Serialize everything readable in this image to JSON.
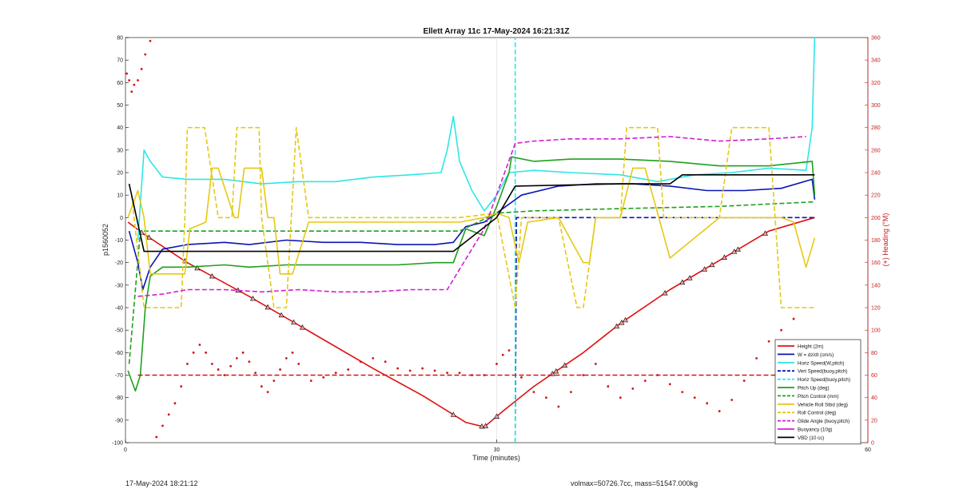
{
  "footer": {
    "left": "17-May-2024 18:21:12",
    "right": "volmax=50726.7cc, mass=51547.000kg"
  },
  "chart_data": {
    "type": "line",
    "title": "Ellett Array 11c 17-May-2024 16:21:31Z",
    "xlabel": "Time (minutes)",
    "ylabel": "p1560052",
    "y2label": "(+) Heading (°M)",
    "xlim": [
      0,
      60
    ],
    "ylim": [
      -100,
      80
    ],
    "y2lim": [
      0,
      360
    ],
    "xticks": [
      0,
      30,
      60
    ],
    "yticks": [
      -100,
      -90,
      -80,
      -70,
      -60,
      -50,
      -40,
      -30,
      -20,
      -10,
      0,
      10,
      20,
      30,
      40,
      50,
      60,
      70,
      80
    ],
    "y2ticks": [
      0,
      20,
      40,
      60,
      80,
      100,
      120,
      140,
      160,
      180,
      200,
      220,
      240,
      260,
      280,
      300,
      320,
      340,
      360
    ],
    "grid": "x-only",
    "legend_position": "bottom-right",
    "colors": {
      "height": "#e01010",
      "w": "#0a14b4",
      "horiz": "#2ee6e6",
      "pitch": "#1ea01e",
      "roll": "#e6c814",
      "glide": "#d21ed2",
      "vbd": "#000000",
      "heading": "#d21414",
      "right_axis": "#c81e1e"
    },
    "series": [
      {
        "name": "Height (2m)",
        "style": "solid",
        "color": "#e01010",
        "marker": "triangle",
        "x": [
          0.2,
          1.4,
          5,
          10,
          15,
          20,
          24,
          27.5,
          29,
          30.5,
          33,
          37,
          40,
          44,
          48,
          52,
          55.7
        ],
        "y": [
          -2,
          -7,
          -20,
          -35,
          -51,
          -67,
          -79,
          -91,
          -93,
          -86,
          -75,
          -60,
          -47,
          -32,
          -19,
          -6,
          0
        ],
        "marker_x": [
          1.3,
          1.9,
          4.8,
          5.8,
          7,
          9.1,
          10.3,
          11.5,
          12.6,
          13.6,
          14.3,
          26.5,
          28.8,
          29.1,
          30,
          34.5,
          34.8,
          35.5,
          39.7,
          40.1,
          40.4,
          43.6,
          45,
          45.6,
          46.8,
          47.4,
          48.4,
          49.2,
          49.5,
          51.7
        ]
      },
      {
        "name": "W = dz/dt (cm/s)",
        "style": "solid",
        "color": "#0a14b4",
        "x": [
          0.3,
          1,
          1.4,
          2,
          3,
          5,
          8,
          10,
          13,
          16,
          19,
          22,
          25,
          26.5,
          27.5,
          29,
          30,
          32,
          35,
          38,
          41,
          44,
          47,
          50,
          53,
          55.5,
          55.7
        ],
        "y": [
          -6,
          -20,
          -32,
          -22,
          -14,
          -12,
          -11,
          -12,
          -10,
          -11,
          -11,
          -12,
          -12,
          -11,
          -4,
          -2,
          2,
          10,
          14,
          15,
          15,
          14,
          12,
          12,
          13,
          17,
          8
        ]
      },
      {
        "name": "Horiz Speed(W,pitch)",
        "style": "solid",
        "color": "#2ee6e6",
        "x": [
          1,
          1.5,
          2,
          3,
          5,
          8,
          11,
          14,
          17,
          20,
          23,
          25.5,
          26,
          26.5,
          27,
          28,
          29,
          30,
          31,
          33,
          36,
          40,
          43,
          46,
          49,
          52,
          55,
          55.5,
          55.7
        ],
        "y": [
          -10,
          30,
          25,
          18,
          17,
          17,
          15,
          16,
          16,
          18,
          19,
          20,
          30,
          45,
          25,
          12,
          3,
          10,
          20,
          21,
          20,
          19,
          16,
          19,
          20,
          22,
          21,
          40,
          80
        ]
      },
      {
        "name": "Vert Speed(buoy,pitch)",
        "style": "dashed",
        "color": "#0a14b4",
        "x": [
          31.5,
          31.6,
          55.7
        ],
        "y": [
          -100,
          0,
          0
        ]
      },
      {
        "name": "Horiz Speed(buoy,pitch)",
        "style": "dashed",
        "color": "#2ee6e6",
        "x": [
          31.5,
          31.5
        ],
        "y": [
          -100,
          80
        ]
      },
      {
        "name": "Pitch Up (deg)",
        "style": "solid",
        "color": "#1ea01e",
        "x": [
          0.2,
          0.8,
          1.2,
          1.6,
          2,
          3,
          5,
          8,
          10,
          13,
          16,
          19,
          22,
          25,
          26.5,
          27.5,
          29,
          30,
          31,
          31.2,
          33,
          36,
          40,
          44,
          48,
          52,
          55.5,
          55.7
        ],
        "y": [
          -68,
          -77,
          -70,
          -40,
          -26,
          -22,
          -22,
          -21,
          -22,
          -21,
          -21,
          -21,
          -21,
          -20,
          -20,
          -5,
          -8,
          5,
          20,
          27,
          25,
          26,
          26,
          25,
          23,
          23,
          25,
          10
        ]
      },
      {
        "name": "Pitch Control (mm)",
        "style": "dashed",
        "color": "#1ea01e",
        "x": [
          0.3,
          1.2,
          27,
          30,
          33,
          40,
          48,
          55.7
        ],
        "y": [
          -65,
          -6,
          -6,
          2,
          3,
          4,
          5,
          7
        ]
      },
      {
        "name": "Vehicle Roll Stbd (deg)",
        "style": "solid",
        "color": "#e6c814",
        "x": [
          0.2,
          1,
          1.5,
          2,
          4,
          4.8,
          5.2,
          6.5,
          7,
          7.5,
          8.8,
          9.1,
          9.6,
          11,
          11.5,
          12,
          12.5,
          13.5,
          14.8,
          27,
          29,
          30,
          31,
          31.8,
          32.5,
          35,
          37,
          37.5,
          38,
          40,
          41,
          42,
          44,
          48,
          49,
          52,
          53,
          54,
          55,
          55.7
        ],
        "y": [
          0,
          12,
          0,
          -25,
          -25,
          -25,
          -5,
          -2,
          22,
          22,
          0,
          0,
          22,
          22,
          0,
          0,
          -25,
          -25,
          -2,
          -2,
          0,
          2,
          0,
          -20,
          -2,
          0,
          -20,
          -20,
          0,
          0,
          22,
          22,
          -18,
          0,
          0,
          0,
          0,
          -2,
          -22,
          -9
        ]
      },
      {
        "name": "Roll Control (deg)",
        "style": "dashed",
        "color": "#e6c814",
        "x": [
          0.5,
          1.5,
          4.5,
          4.8,
          5,
          6.4,
          7.5,
          8.6,
          9,
          10.8,
          11,
          12,
          13,
          13.8,
          14.8,
          27,
          30,
          31.5,
          32,
          33,
          35,
          36.5,
          37,
          38,
          40,
          40.5,
          43,
          43.5,
          48,
          49,
          52,
          53,
          54.5,
          55.7
        ],
        "y": [
          10,
          -40,
          -40,
          0,
          40,
          40,
          0,
          0,
          40,
          40,
          0,
          -40,
          -40,
          40,
          0,
          0,
          2,
          -40,
          0,
          0,
          0,
          -40,
          -40,
          0,
          0,
          40,
          40,
          0,
          0,
          40,
          40,
          -40,
          -40,
          -40
        ]
      },
      {
        "name": "Glide Angle (buoy,pitch)",
        "style": "dashed",
        "color": "#d21ed2",
        "x": [
          1,
          3,
          5,
          8,
          11,
          14,
          17,
          20,
          23,
          26,
          27,
          29,
          31.5,
          33,
          36,
          40,
          44,
          48,
          52,
          55
        ],
        "y": [
          -35,
          -34,
          -32,
          -32,
          -33,
          -32,
          -33,
          -33,
          -32,
          -32,
          -23,
          -5,
          33,
          34,
          35,
          35,
          36,
          34,
          35,
          36
        ]
      },
      {
        "name": "Buoyancy (10g)",
        "style": "solid",
        "color": "#d21ed2",
        "x": [],
        "y": []
      },
      {
        "name": "VBD (10 cc)",
        "style": "solid",
        "color": "#000000",
        "x": [
          0.3,
          1.5,
          26.5,
          30,
          31.5,
          40,
          44,
          45,
          55.7
        ],
        "y": [
          15,
          -15,
          -15,
          0,
          14,
          15,
          15,
          19,
          19
        ]
      },
      {
        "name": "Heading",
        "axis": "right",
        "style": "dotted",
        "color": "#d21414",
        "x": [
          0.1,
          0.3,
          0.5,
          0.7,
          1,
          1.3,
          1.6,
          2,
          2.5,
          3,
          3.5,
          4,
          4.5,
          5,
          5.5,
          6,
          6.5,
          7,
          7.5,
          8,
          8.5,
          9,
          9.5,
          10,
          10.5,
          11,
          11.5,
          12,
          12.5,
          13,
          13.5,
          14,
          15,
          16,
          17,
          18,
          19,
          20,
          21,
          22,
          23,
          24,
          25,
          26,
          27,
          28,
          29,
          30,
          30.5,
          31,
          32,
          33,
          34,
          35,
          36,
          37,
          38,
          39,
          40,
          41,
          42,
          43,
          44,
          45,
          46,
          47,
          48,
          49,
          50,
          51,
          52,
          53,
          54,
          55
        ],
        "y": [
          328,
          322,
          312,
          318,
          322,
          332,
          345,
          357,
          5,
          15,
          25,
          35,
          50,
          70,
          80,
          87,
          80,
          70,
          65,
          60,
          68,
          75,
          80,
          72,
          62,
          50,
          45,
          55,
          65,
          75,
          80,
          70,
          55,
          58,
          62,
          65,
          72,
          75,
          72,
          66,
          64,
          66,
          64,
          62,
          62,
          60,
          60,
          70,
          78,
          82,
          58,
          45,
          40,
          32,
          45,
          60,
          70,
          50,
          40,
          48,
          55,
          60,
          52,
          45,
          40,
          35,
          28,
          38,
          55,
          75,
          90,
          100,
          110,
          85
        ]
      },
      {
        "name": "Heading target",
        "axis": "right",
        "style": "dashed",
        "color": "#d21414",
        "x": [
          1,
          55.7
        ],
        "y": [
          60,
          60
        ]
      }
    ],
    "legend": [
      {
        "label": "Height (2m)",
        "color": "#e01010",
        "style": "solid"
      },
      {
        "label": "W = dz/dt (cm/s)",
        "color": "#0a14b4",
        "style": "solid"
      },
      {
        "label": "Horiz Speed(W,pitch)",
        "color": "#2ee6e6",
        "style": "solid"
      },
      {
        "label": "Vert Speed(buoy,pitch)",
        "color": "#0a14b4",
        "style": "dashed"
      },
      {
        "label": "Horiz Speed(buoy,pitch)",
        "color": "#2ee6e6",
        "style": "dashed"
      },
      {
        "label": "Pitch Up (deg)",
        "color": "#1ea01e",
        "style": "solid"
      },
      {
        "label": "Pitch Control (mm)",
        "color": "#1ea01e",
        "style": "dashed"
      },
      {
        "label": "Vehicle Roll Stbd (deg)",
        "color": "#e6c814",
        "style": "solid"
      },
      {
        "label": "Roll Control (deg)",
        "color": "#e6c814",
        "style": "dashed"
      },
      {
        "label": "Glide Angle (buoy,pitch)",
        "color": "#d21ed2",
        "style": "dashed"
      },
      {
        "label": "Buoyancy (10g)",
        "color": "#d21ed2",
        "style": "solid"
      },
      {
        "label": "VBD (10 cc)",
        "color": "#000000",
        "style": "solid"
      }
    ]
  }
}
